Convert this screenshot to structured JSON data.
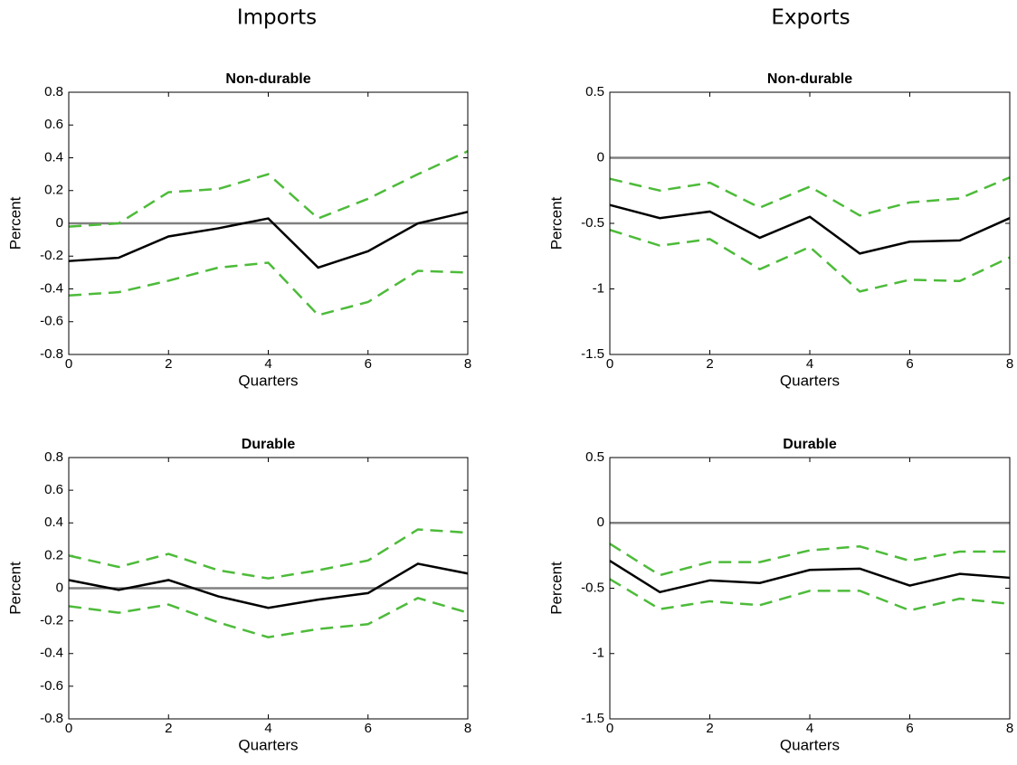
{
  "column_titles": [
    "Imports",
    "Exports"
  ],
  "chart_data": [
    {
      "type": "line",
      "title": "Non-durable",
      "xlabel": "Quarters",
      "ylabel": "Percent",
      "x": [
        0,
        1,
        2,
        3,
        4,
        5,
        6,
        7,
        8
      ],
      "xlim": [
        0,
        8
      ],
      "xticks": [
        0,
        2,
        4,
        6,
        8
      ],
      "ylim": [
        -0.8,
        0.8
      ],
      "yticks": [
        -0.8,
        -0.6,
        -0.4,
        -0.2,
        0,
        0.2,
        0.4,
        0.6,
        0.8
      ],
      "hline": 0,
      "hline_color": "#808080",
      "series": [
        {
          "color": "#000000",
          "dash": false,
          "values": [
            -0.23,
            -0.21,
            -0.08,
            -0.03,
            0.03,
            -0.27,
            -0.17,
            0.0,
            0.07
          ]
        },
        {
          "color": "#4dbb3a",
          "dash": true,
          "values": [
            -0.02,
            0.0,
            0.19,
            0.21,
            0.3,
            0.03,
            0.15,
            0.3,
            0.44
          ]
        },
        {
          "color": "#4dbb3a",
          "dash": true,
          "values": [
            -0.44,
            -0.42,
            -0.35,
            -0.27,
            -0.24,
            -0.56,
            -0.48,
            -0.29,
            -0.3
          ]
        }
      ]
    },
    {
      "type": "line",
      "title": "Non-durable",
      "xlabel": "Quarters",
      "ylabel": "Percent",
      "x": [
        0,
        1,
        2,
        3,
        4,
        5,
        6,
        7,
        8
      ],
      "xlim": [
        0,
        8
      ],
      "xticks": [
        0,
        2,
        4,
        6,
        8
      ],
      "ylim": [
        -1.5,
        0.5
      ],
      "yticks": [
        -1.5,
        -1,
        -0.5,
        0,
        0.5
      ],
      "hline": 0,
      "hline_color": "#808080",
      "series": [
        {
          "color": "#000000",
          "dash": false,
          "values": [
            -0.36,
            -0.46,
            -0.41,
            -0.61,
            -0.45,
            -0.73,
            -0.64,
            -0.63,
            -0.46
          ]
        },
        {
          "color": "#4dbb3a",
          "dash": true,
          "values": [
            -0.16,
            -0.25,
            -0.19,
            -0.38,
            -0.22,
            -0.44,
            -0.34,
            -0.31,
            -0.15
          ]
        },
        {
          "color": "#4dbb3a",
          "dash": true,
          "values": [
            -0.55,
            -0.67,
            -0.62,
            -0.85,
            -0.68,
            -1.02,
            -0.93,
            -0.94,
            -0.76
          ]
        }
      ]
    },
    {
      "type": "line",
      "title": "Durable",
      "xlabel": "Quarters",
      "ylabel": "Percent",
      "x": [
        0,
        1,
        2,
        3,
        4,
        5,
        6,
        7,
        8
      ],
      "xlim": [
        0,
        8
      ],
      "xticks": [
        0,
        2,
        4,
        6,
        8
      ],
      "ylim": [
        -0.8,
        0.8
      ],
      "yticks": [
        -0.8,
        -0.6,
        -0.4,
        -0.2,
        0,
        0.2,
        0.4,
        0.6,
        0.8
      ],
      "hline": 0,
      "hline_color": "#808080",
      "series": [
        {
          "color": "#000000",
          "dash": false,
          "values": [
            0.05,
            -0.01,
            0.05,
            -0.05,
            -0.12,
            -0.07,
            -0.03,
            0.15,
            0.09
          ]
        },
        {
          "color": "#4dbb3a",
          "dash": true,
          "values": [
            0.2,
            0.13,
            0.21,
            0.11,
            0.06,
            0.11,
            0.17,
            0.36,
            0.34
          ]
        },
        {
          "color": "#4dbb3a",
          "dash": true,
          "values": [
            -0.11,
            -0.15,
            -0.1,
            -0.21,
            -0.3,
            -0.25,
            -0.22,
            -0.06,
            -0.15
          ]
        }
      ]
    },
    {
      "type": "line",
      "title": "Durable",
      "xlabel": "Quarters",
      "ylabel": "Percent",
      "x": [
        0,
        1,
        2,
        3,
        4,
        5,
        6,
        7,
        8
      ],
      "xlim": [
        0,
        8
      ],
      "xticks": [
        0,
        2,
        4,
        6,
        8
      ],
      "ylim": [
        -1.5,
        0.5
      ],
      "yticks": [
        -1.5,
        -1,
        -0.5,
        0,
        0.5
      ],
      "hline": 0,
      "hline_color": "#808080",
      "series": [
        {
          "color": "#000000",
          "dash": false,
          "values": [
            -0.29,
            -0.53,
            -0.44,
            -0.46,
            -0.36,
            -0.35,
            -0.48,
            -0.39,
            -0.42
          ]
        },
        {
          "color": "#4dbb3a",
          "dash": true,
          "values": [
            -0.16,
            -0.4,
            -0.3,
            -0.3,
            -0.21,
            -0.18,
            -0.29,
            -0.22,
            -0.22
          ]
        },
        {
          "color": "#4dbb3a",
          "dash": true,
          "values": [
            -0.43,
            -0.66,
            -0.6,
            -0.63,
            -0.52,
            -0.52,
            -0.67,
            -0.58,
            -0.62
          ]
        }
      ]
    }
  ]
}
